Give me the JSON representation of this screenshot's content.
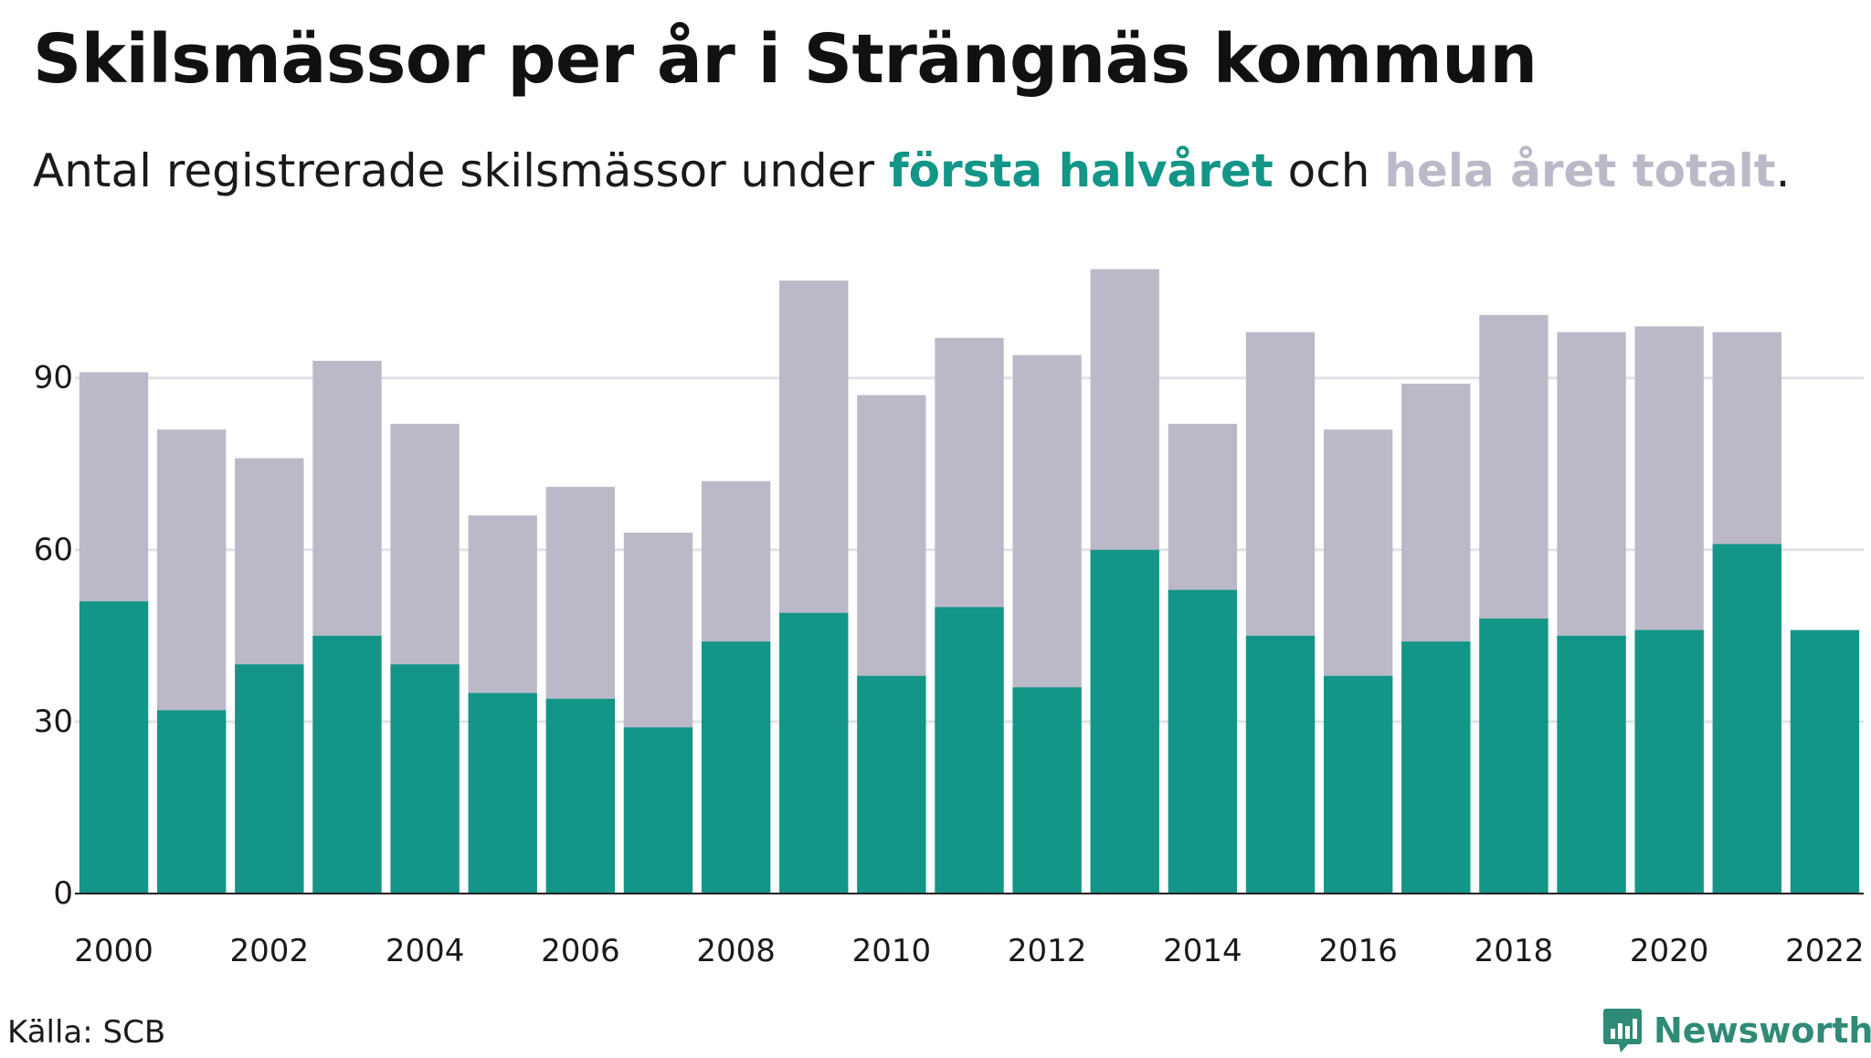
{
  "title": "Skilsmässor per år i Strängnäs kommun",
  "subtitle": {
    "before": "Antal registrerade skilsmässor under ",
    "first_half": "första halvåret",
    "middle": " och ",
    "full_year": "hela året totalt",
    "after": "."
  },
  "colors": {
    "first_half": "#139587",
    "full_year": "#bbb9c8",
    "grid": "#e2e2e6",
    "axis": "#222222",
    "brand": "#2f8a76"
  },
  "chart_data": {
    "type": "bar",
    "stacking": "overlay",
    "x": [
      2000,
      2001,
      2002,
      2003,
      2004,
      2005,
      2006,
      2007,
      2008,
      2009,
      2010,
      2011,
      2012,
      2013,
      2014,
      2015,
      2016,
      2017,
      2018,
      2019,
      2020,
      2021,
      2022
    ],
    "x_tick_labels": [
      "2000",
      "2002",
      "2004",
      "2006",
      "2008",
      "2010",
      "2012",
      "2014",
      "2016",
      "2018",
      "2020",
      "2022"
    ],
    "y_tick_labels": [
      "0",
      "30",
      "60",
      "90"
    ],
    "y_ticks": [
      0,
      30,
      60,
      90
    ],
    "ylim": [
      0,
      113
    ],
    "grid": true,
    "series": [
      {
        "name": "hela året totalt",
        "values": [
          91,
          81,
          76,
          93,
          82,
          66,
          71,
          63,
          72,
          107,
          87,
          97,
          94,
          109,
          82,
          98,
          81,
          89,
          101,
          98,
          99,
          98,
          null
        ]
      },
      {
        "name": "första halvåret",
        "values": [
          51,
          32,
          40,
          45,
          40,
          35,
          34,
          29,
          44,
          49,
          38,
          50,
          36,
          60,
          53,
          45,
          38,
          44,
          48,
          45,
          46,
          61,
          46
        ]
      }
    ],
    "xlabel": "",
    "ylabel": ""
  },
  "footer": {
    "source": "Källa: SCB",
    "brand_name": "Newsworthy",
    "brand_icon": "newsworthy-logo-icon"
  }
}
